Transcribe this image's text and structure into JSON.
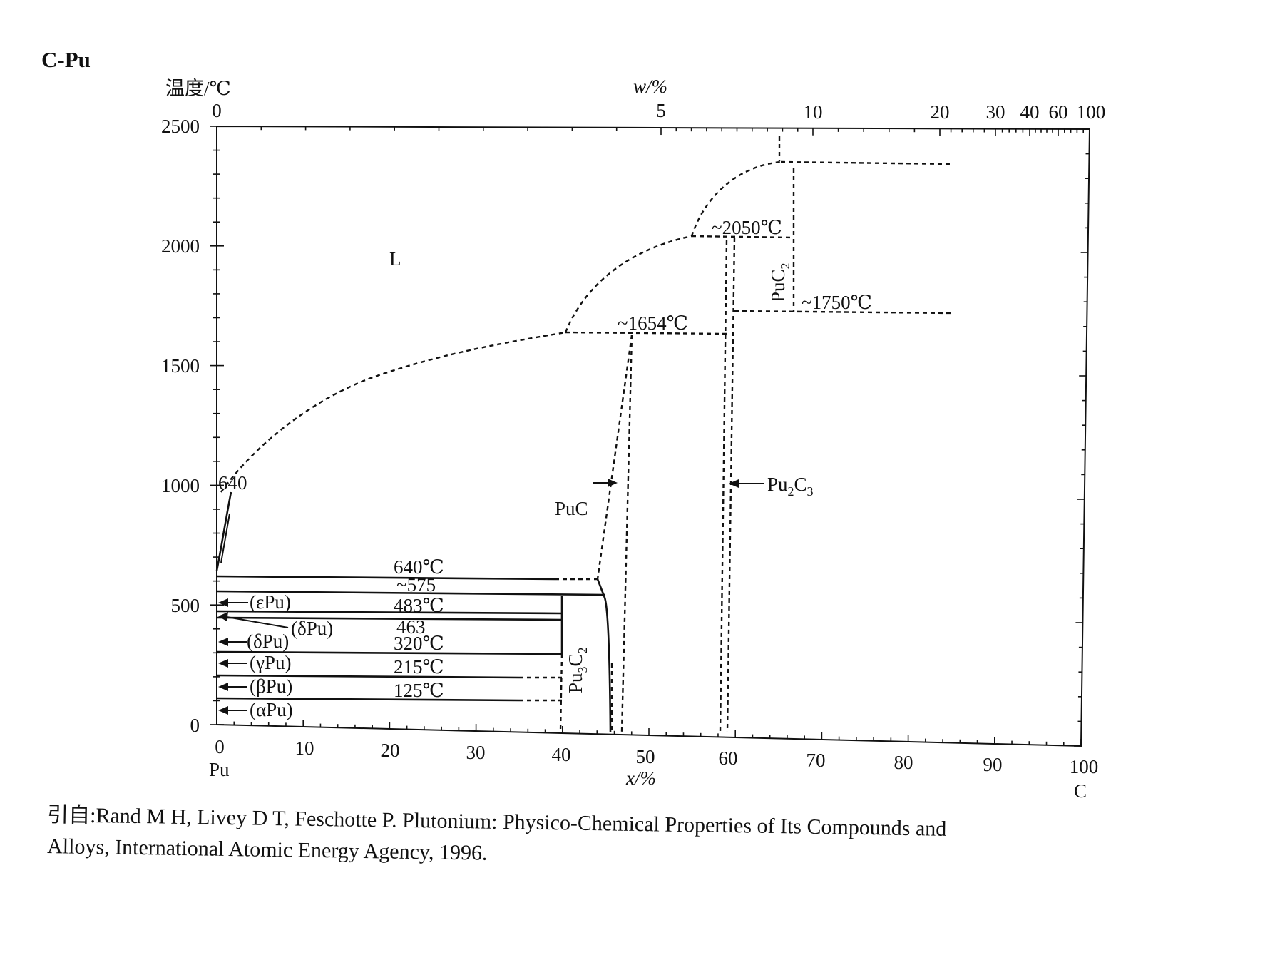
{
  "title": "C-Pu",
  "axes": {
    "y_label": "温度/℃",
    "y_ticks": [
      "2500",
      "2000",
      "1500",
      "1000",
      "500",
      "0"
    ],
    "top_label": "w/%",
    "top_ticks": [
      "0",
      "5",
      "10",
      "20",
      "30",
      "40",
      "60",
      "100"
    ],
    "bottom_label": "x/%",
    "bottom_ticks": [
      "0",
      "10",
      "20",
      "30",
      "40",
      "50",
      "60",
      "70",
      "80",
      "90",
      "100"
    ],
    "left_element": "Pu",
    "right_element": "C"
  },
  "labels": {
    "liquid": "L",
    "t640_side": "640",
    "t2050": "~2050℃",
    "t1654": "~1654℃",
    "t1750": "~1750℃",
    "t640": "640℃",
    "t575": "~575",
    "t483": "483℃",
    "t463": "463",
    "t320": "320℃",
    "t215": "215℃",
    "t125": "125℃",
    "puc": "PuC",
    "pu2c3_main": "Pu",
    "pu2c3_sub1": "2",
    "pu2c3_c": "C",
    "pu2c3_sub2": "3",
    "puc2_main": "PuC",
    "puc2_sub": "2",
    "pu3c2_main": "Pu",
    "pu3c2_sub1": "3",
    "pu3c2_c": "C",
    "pu3c2_sub2": "2",
    "eps_pu": "(εPu)",
    "delta_pu_a": "(δPu)",
    "delta_pu_b": "(δPu)",
    "gamma_pu": "(γPu)",
    "beta_pu": "(βPu)",
    "alpha_pu": "(αPu)"
  },
  "citation": {
    "line1": "引自:Rand M H, Livey D T, Feschotte P. Plutonium: Physico-Chemical Properties of Its Compounds and",
    "line2": "Alloys, International Atomic Energy Agency, 1996."
  },
  "chart_data": {
    "type": "phase-diagram",
    "system": "C-Pu",
    "x_unit": "x/% C (atomic)",
    "y_unit": "温度/℃",
    "xlim": [
      0,
      100
    ],
    "ylim": [
      0,
      2500
    ],
    "invariants_C": [
      640,
      575,
      483,
      463,
      320,
      215,
      125,
      1654,
      2050,
      1750
    ],
    "phases": [
      "L",
      "(εPu)",
      "(δPu)",
      "(γPu)",
      "(βPu)",
      "(αPu)",
      "Pu3C2",
      "PuC",
      "Pu2C3",
      "PuC2"
    ]
  }
}
